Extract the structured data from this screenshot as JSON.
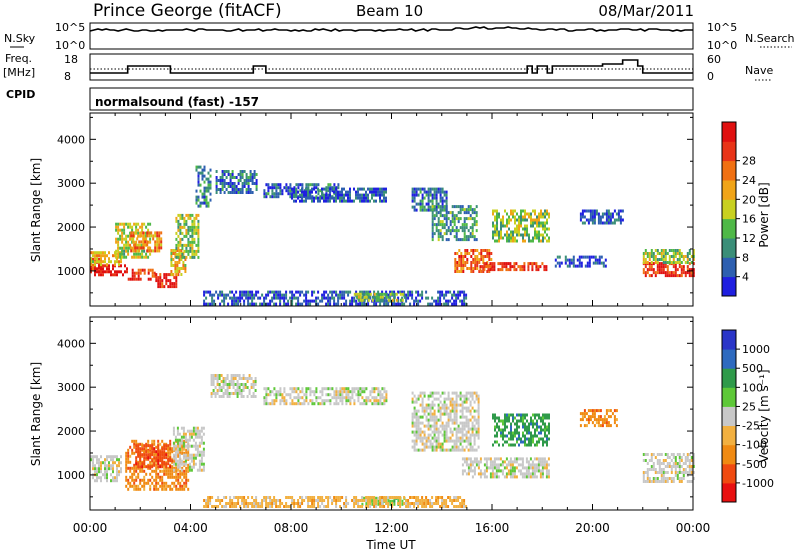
{
  "header": {
    "station": "Prince George (fitACF)",
    "beam": "Beam 10",
    "date": "08/Mar/2011"
  },
  "ancillary": {
    "nsky_label": "N.Sky",
    "nsearch_label": "N.Search",
    "freq_label_1": "Freq.",
    "freq_label_2": "[MHz]",
    "nave_label": "Nave",
    "cpid_label": "CPID",
    "nsky_ticks": [
      "10^5",
      "10^0"
    ],
    "nsearch_ticks": [
      "10^5",
      "10^0"
    ],
    "freq_ticks": [
      "18",
      "8"
    ],
    "nave_ticks": [
      "60",
      "0"
    ]
  },
  "cpid_text": "normalsound (fast) -157",
  "colors": {
    "power": [
      "#1f1fe0",
      "#2d5fb0",
      "#3a8e78",
      "#4fb847",
      "#c8d020",
      "#f0a418",
      "#f07012",
      "#e83418",
      "#e01010"
    ],
    "velocity": [
      "#e81010",
      "#f04a10",
      "#f08a12",
      "#f2b040",
      "#c8c8c8",
      "#5ec838",
      "#2f9a4a",
      "#2e6abf",
      "#2a35c8"
    ]
  },
  "chart_data": [
    {
      "type": "heatmap",
      "name": "power",
      "xlabel": "",
      "ylabel": "Slant Range [km]",
      "x_ticks": [
        "00:00",
        "04:00",
        "08:00",
        "12:00",
        "16:00",
        "20:00",
        "00:00"
      ],
      "y_ticks": [
        "1000",
        "2000",
        "3000",
        "4000"
      ],
      "xlim": [
        0,
        24
      ],
      "ylim": [
        200,
        4600
      ],
      "colorbar_label": "Power [dB]",
      "colorbar_ticks": [
        "4",
        "8",
        "12",
        "16",
        "20",
        "24",
        "28"
      ],
      "color_range": [
        0,
        32
      ],
      "regions": [
        {
          "t0": 0.0,
          "t1": 0.4,
          "r0": 1000,
          "r1": 1300,
          "level": 0.8
        },
        {
          "t0": 0.0,
          "t1": 1.5,
          "r0": 880,
          "r1": 1150,
          "level": 0.95
        },
        {
          "t0": 0.0,
          "t1": 1.2,
          "r0": 1150,
          "r1": 1450,
          "level": 0.55
        },
        {
          "t0": 1.5,
          "t1": 2.6,
          "r0": 800,
          "r1": 1050,
          "level": 0.85
        },
        {
          "t0": 1.0,
          "t1": 2.4,
          "r0": 1300,
          "r1": 2100,
          "level": 0.5
        },
        {
          "t0": 1.6,
          "t1": 2.8,
          "r0": 1450,
          "r1": 1900,
          "level": 0.7
        },
        {
          "t0": 2.6,
          "t1": 3.5,
          "r0": 650,
          "r1": 950,
          "level": 0.9
        },
        {
          "t0": 3.2,
          "t1": 3.8,
          "r0": 900,
          "r1": 1500,
          "level": 0.6
        },
        {
          "t0": 3.4,
          "t1": 4.3,
          "r0": 1300,
          "r1": 2300,
          "level": 0.45
        },
        {
          "t0": 4.2,
          "t1": 4.8,
          "r0": 2500,
          "r1": 3400,
          "level": 0.25
        },
        {
          "t0": 5.0,
          "t1": 6.6,
          "r0": 2800,
          "r1": 3300,
          "level": 0.2
        },
        {
          "t0": 6.9,
          "t1": 9.9,
          "r0": 2700,
          "r1": 3000,
          "level": 0.18
        },
        {
          "t0": 8.0,
          "t1": 11.8,
          "r0": 2600,
          "r1": 2900,
          "level": 0.15
        },
        {
          "t0": 12.8,
          "t1": 14.2,
          "r0": 2400,
          "r1": 2900,
          "level": 0.2
        },
        {
          "t0": 13.6,
          "t1": 15.4,
          "r0": 1700,
          "r1": 2500,
          "level": 0.3
        },
        {
          "t0": 14.5,
          "t1": 16.0,
          "r0": 1000,
          "r1": 1500,
          "level": 0.75
        },
        {
          "t0": 15.5,
          "t1": 18.2,
          "r0": 1000,
          "r1": 1200,
          "level": 0.85
        },
        {
          "t0": 16.0,
          "t1": 18.3,
          "r0": 1700,
          "r1": 2400,
          "level": 0.45
        },
        {
          "t0": 18.5,
          "t1": 20.5,
          "r0": 1100,
          "r1": 1350,
          "level": 0.12
        },
        {
          "t0": 19.5,
          "t1": 21.2,
          "r0": 2100,
          "r1": 2400,
          "level": 0.15
        },
        {
          "t0": 22.0,
          "t1": 24.0,
          "r0": 900,
          "r1": 1200,
          "level": 0.9
        },
        {
          "t0": 22.0,
          "t1": 24.0,
          "r0": 1200,
          "r1": 1500,
          "level": 0.45
        },
        {
          "t0": 4.5,
          "t1": 15.0,
          "r0": 250,
          "r1": 550,
          "level": 0.15
        },
        {
          "t0": 10.5,
          "t1": 12.5,
          "r0": 300,
          "r1": 500,
          "level": 0.4
        }
      ]
    },
    {
      "type": "heatmap",
      "name": "velocity",
      "xlabel": "Time UT",
      "ylabel": "Slant Range [km]",
      "x_ticks": [
        "00:00",
        "04:00",
        "08:00",
        "12:00",
        "16:00",
        "20:00",
        "00:00"
      ],
      "y_ticks": [
        "1000",
        "2000",
        "3000",
        "4000"
      ],
      "xlim": [
        0,
        24
      ],
      "ylim": [
        200,
        4600
      ],
      "colorbar_label": "Velocity [m s⁻¹]",
      "colorbar_ticks": [
        "1000",
        "500",
        "100",
        "25",
        "-25",
        "-100",
        "-500",
        "-1000"
      ],
      "regions": [
        {
          "t0": 0.0,
          "t1": 1.2,
          "r0": 850,
          "r1": 1450,
          "level": 4
        },
        {
          "t0": 1.4,
          "t1": 3.9,
          "r0": 650,
          "r1": 1800,
          "level": 2
        },
        {
          "t0": 1.8,
          "t1": 3.3,
          "r0": 1200,
          "r1": 1700,
          "level": 1
        },
        {
          "t0": 3.3,
          "t1": 4.5,
          "r0": 1100,
          "r1": 2100,
          "level": 4
        },
        {
          "t0": 4.8,
          "t1": 6.6,
          "r0": 2800,
          "r1": 3300,
          "level": 4
        },
        {
          "t0": 6.9,
          "t1": 11.8,
          "r0": 2600,
          "r1": 3000,
          "level": 4
        },
        {
          "t0": 12.8,
          "t1": 15.5,
          "r0": 1600,
          "r1": 2900,
          "level": 4
        },
        {
          "t0": 14.8,
          "t1": 18.3,
          "r0": 950,
          "r1": 1400,
          "level": 4
        },
        {
          "t0": 16.0,
          "t1": 18.3,
          "r0": 1700,
          "r1": 2400,
          "level": 6
        },
        {
          "t0": 19.5,
          "t1": 21.0,
          "r0": 2100,
          "r1": 2500,
          "level": 2
        },
        {
          "t0": 22.0,
          "t1": 24.0,
          "r0": 850,
          "r1": 1500,
          "level": 4
        },
        {
          "t0": 10.8,
          "t1": 12.5,
          "r0": 300,
          "r1": 500,
          "level": 5
        },
        {
          "t0": 4.5,
          "t1": 15.0,
          "r0": 250,
          "r1": 520,
          "level": 3
        }
      ]
    }
  ]
}
